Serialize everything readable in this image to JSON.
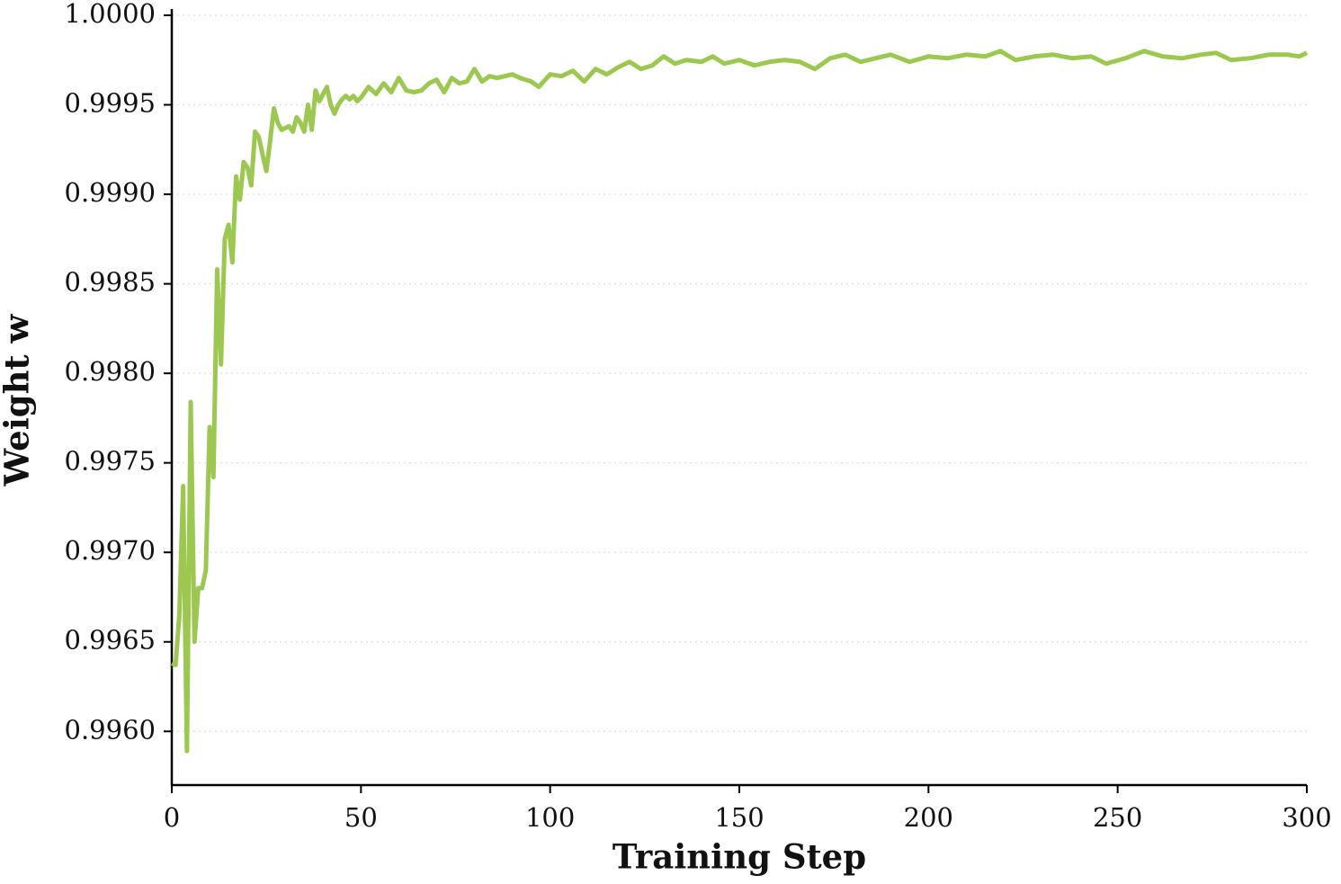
{
  "chart_data": {
    "type": "line",
    "xlabel": "Training Step",
    "ylabel": "Weight w",
    "x": [
      0,
      1,
      2,
      3,
      4,
      5,
      6,
      7,
      8,
      9,
      10,
      11,
      12,
      13,
      14,
      15,
      16,
      17,
      18,
      19,
      20,
      21,
      22,
      23,
      24,
      25,
      26,
      27,
      28,
      29,
      30,
      31,
      32,
      33,
      34,
      35,
      36,
      37,
      38,
      39,
      40,
      41,
      42,
      43,
      44,
      45,
      46,
      47,
      48,
      49,
      50,
      52,
      54,
      56,
      58,
      60,
      62,
      64,
      66,
      68,
      70,
      72,
      74,
      76,
      78,
      80,
      82,
      84,
      86,
      88,
      90,
      92,
      95,
      97,
      100,
      103,
      106,
      109,
      112,
      115,
      118,
      121,
      124,
      127,
      130,
      133,
      136,
      140,
      143,
      146,
      150,
      154,
      158,
      162,
      166,
      170,
      174,
      178,
      182,
      186,
      190,
      195,
      200,
      205,
      210,
      215,
      219,
      223,
      228,
      233,
      238,
      243,
      247,
      252,
      257,
      262,
      267,
      272,
      276,
      280,
      285,
      290,
      295,
      298,
      300
    ],
    "series": [
      {
        "name": "Weight w",
        "color": "#9cc851",
        "values": [
          0.99638,
          0.99637,
          0.99665,
          0.99737,
          0.99589,
          0.99784,
          0.9965,
          0.9968,
          0.9968,
          0.9969,
          0.9977,
          0.99742,
          0.99858,
          0.99805,
          0.99875,
          0.99883,
          0.99862,
          0.9991,
          0.99897,
          0.99918,
          0.99915,
          0.99905,
          0.99935,
          0.99932,
          0.99922,
          0.99913,
          0.9993,
          0.99948,
          0.9994,
          0.99936,
          0.99937,
          0.99938,
          0.99935,
          0.99943,
          0.9994,
          0.99935,
          0.9995,
          0.99936,
          0.99958,
          0.99952,
          0.99956,
          0.9996,
          0.9995,
          0.99945,
          0.9995,
          0.99953,
          0.99955,
          0.99953,
          0.99955,
          0.99952,
          0.99954,
          0.9996,
          0.99956,
          0.99962,
          0.99957,
          0.99965,
          0.99958,
          0.99957,
          0.99958,
          0.99962,
          0.99964,
          0.99957,
          0.99965,
          0.99962,
          0.99963,
          0.9997,
          0.99963,
          0.99966,
          0.99965,
          0.99966,
          0.99967,
          0.99965,
          0.99963,
          0.9996,
          0.99967,
          0.99966,
          0.99969,
          0.99963,
          0.9997,
          0.99967,
          0.99971,
          0.99974,
          0.9997,
          0.99972,
          0.99977,
          0.99973,
          0.99975,
          0.99974,
          0.99977,
          0.99973,
          0.99975,
          0.99972,
          0.99974,
          0.99975,
          0.99974,
          0.9997,
          0.99976,
          0.99978,
          0.99974,
          0.99976,
          0.99978,
          0.99974,
          0.99977,
          0.99976,
          0.99978,
          0.99977,
          0.9998,
          0.99975,
          0.99977,
          0.99978,
          0.99976,
          0.99977,
          0.99973,
          0.99976,
          0.9998,
          0.99977,
          0.99976,
          0.99978,
          0.99979,
          0.99975,
          0.99976,
          0.99978,
          0.99978,
          0.99977,
          0.99979
        ]
      }
    ],
    "xlim": [
      0,
      300
    ],
    "xticks": [
      0,
      50,
      100,
      150,
      200,
      250,
      300
    ],
    "ylim": [
      0.9957,
      1.0
    ],
    "yticks": [
      {
        "value": 0.996,
        "label": "0.9960"
      },
      {
        "value": 0.9965,
        "label": "0.9965"
      },
      {
        "value": 0.997,
        "label": "0.9970"
      },
      {
        "value": 0.9975,
        "label": "0.9975"
      },
      {
        "value": 0.998,
        "label": "0.9980"
      },
      {
        "value": 0.9985,
        "label": "0.9985"
      },
      {
        "value": 0.999,
        "label": "0.9990"
      },
      {
        "value": 0.9995,
        "label": "0.9995"
      },
      {
        "value": 1.0,
        "label": "1.0000"
      }
    ],
    "grid": true
  }
}
